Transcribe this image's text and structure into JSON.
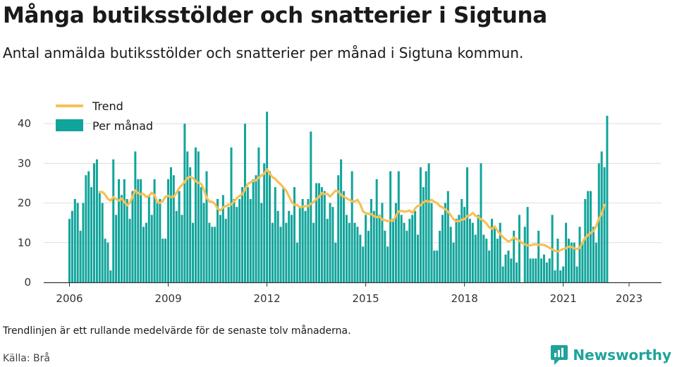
{
  "title": "Många butiksstölder och snatterier i Sigtuna",
  "subtitle": "Antal anmälda butiksstölder och snatterier per månad i Sigtuna kommun.",
  "footnote": "Trendlinjen är ett rullande medelvärde för de senaste tolv månaderna.",
  "source": "Källa: Brå",
  "brand": "Newsworthy",
  "colors": {
    "bar": "#11a49b",
    "trend": "#f5c156",
    "grid": "#dddddd",
    "axis": "#333333",
    "brand": "#1fa39a"
  },
  "chart_data": {
    "type": "bar",
    "start": "2006-01",
    "end": "2023-04",
    "ylim": [
      0,
      45
    ],
    "yticks": [
      0,
      10,
      20,
      30,
      40
    ],
    "xticks": [
      "2006",
      "2009",
      "2012",
      "2015",
      "2018",
      "2021",
      "2023"
    ],
    "legend": "top-left",
    "grid": true,
    "series": [
      {
        "name": "Per månad",
        "type": "bar",
        "values": [
          16,
          18,
          21,
          20,
          13,
          20,
          27,
          28,
          24,
          30,
          31,
          23,
          20,
          11,
          10,
          3,
          31,
          17,
          26,
          22,
          26,
          21,
          16,
          23,
          33,
          26,
          26,
          14,
          15,
          22,
          17,
          26,
          20,
          21,
          11,
          11,
          26,
          29,
          27,
          18,
          23,
          17,
          40,
          33,
          29,
          15,
          34,
          33,
          24,
          20,
          28,
          15,
          14,
          14,
          21,
          17,
          22,
          16,
          19,
          34,
          21,
          19,
          21,
          24,
          40,
          24,
          21,
          26,
          27,
          34,
          20,
          30,
          43,
          28,
          15,
          24,
          18,
          14,
          24,
          15,
          18,
          17,
          24,
          10,
          19,
          21,
          18,
          21,
          38,
          15,
          25,
          25,
          24,
          23,
          16,
          20,
          19,
          10,
          27,
          31,
          23,
          17,
          15,
          28,
          15,
          14,
          12,
          9,
          17,
          13,
          21,
          18,
          26,
          17,
          20,
          13,
          9,
          28,
          16,
          20,
          28,
          17,
          15,
          13,
          16,
          17,
          18,
          12,
          29,
          24,
          28,
          30,
          20,
          8,
          8,
          13,
          17,
          20,
          23,
          14,
          10,
          16,
          17,
          21,
          19,
          29,
          16,
          15,
          12,
          17,
          30,
          12,
          11,
          8,
          16,
          14,
          11,
          15,
          4,
          7,
          8,
          6,
          13,
          5,
          17,
          0,
          14,
          19,
          6,
          6,
          6,
          13,
          6,
          7,
          5,
          6,
          17,
          3,
          11,
          3,
          4,
          15,
          11,
          10,
          10,
          4,
          14,
          10,
          21,
          23,
          23,
          14,
          10,
          30,
          33,
          29,
          42
        ]
      },
      {
        "name": "Trend",
        "type": "line",
        "start": "2006-12",
        "values": [
          22.7,
          22.8,
          22.1,
          21.0,
          20.6,
          21.5,
          21.0,
          20.6,
          21.1,
          20.3,
          19.4,
          20.0,
          21.5,
          23.2,
          22.5,
          22.2,
          22.3,
          21.5,
          21.8,
          22.6,
          22.0,
          20.2,
          20.0,
          20.5,
          21.6,
          21.8,
          21.5,
          21.6,
          22.5,
          23.8,
          24.5,
          25.3,
          26.3,
          26.6,
          26.3,
          25.5,
          25.1,
          24.8,
          23.4,
          21.3,
          20.4,
          20.3,
          19.8,
          18.6,
          18.1,
          18.9,
          19.2,
          19.6,
          19.6,
          20.4,
          21.2,
          21.8,
          22.2,
          23.4,
          24.8,
          25.2,
          25.6,
          25.7,
          26.4,
          26.9,
          27.4,
          28.5,
          27.4,
          26.5,
          26.1,
          25.3,
          24.7,
          23.9,
          23.1,
          21.7,
          20.3,
          19.5,
          19.5,
          18.9,
          19.1,
          19.2,
          19.2,
          19.8,
          20.2,
          21.0,
          21.5,
          22.5,
          22.3,
          22.3,
          21.6,
          22.4,
          23.1,
          22.9,
          22.0,
          21.6,
          21.2,
          20.8,
          20.4,
          20.4,
          20.8,
          19.7,
          17.9,
          17.4,
          17.3,
          17.2,
          16.7,
          16.4,
          16.6,
          15.8,
          15.7,
          15.4,
          15.6,
          15.5,
          16.7,
          17.9,
          18.0,
          17.8,
          17.9,
          18.1,
          17.5,
          18.6,
          19.3,
          19.4,
          20.2,
          20.5,
          20.3,
          20.8,
          20.3,
          20.0,
          19.2,
          18.9,
          18.4,
          17.8,
          16.9,
          15.9,
          15.4,
          15.4,
          15.8,
          15.9,
          16.7,
          16.9,
          17.5,
          16.8,
          16.4,
          15.9,
          15.5,
          14.8,
          13.9,
          13.5,
          14.1,
          13.0,
          12.2,
          11.4,
          10.8,
          10.3,
          10.6,
          11.3,
          10.9,
          10.5,
          9.9,
          9.6,
          9.3,
          9.3,
          9.5,
          9.6,
          9.4,
          9.5,
          9.4,
          9.1,
          8.7,
          8.3,
          7.9,
          7.8,
          8.1,
          8.4,
          8.6,
          9.0,
          8.9,
          8.6,
          8.4,
          8.7,
          10.0,
          11.2,
          11.9,
          12.5,
          12.9,
          14.2,
          16.0,
          17.2,
          19.5
        ]
      }
    ]
  }
}
